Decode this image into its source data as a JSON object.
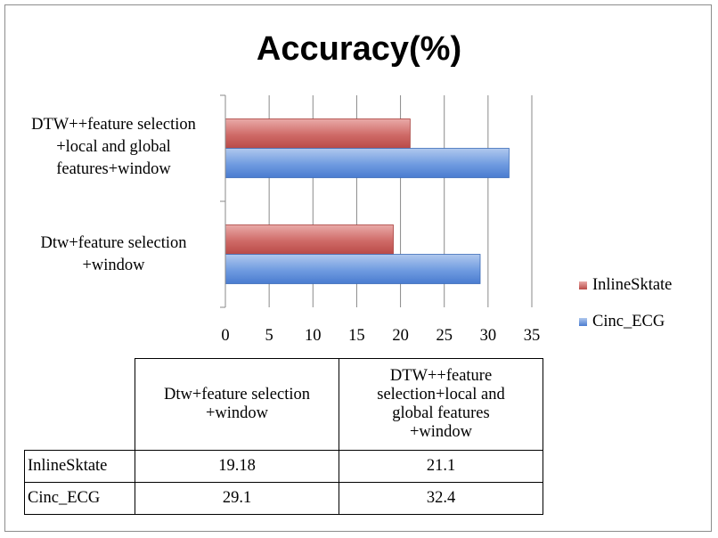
{
  "chart_data": {
    "type": "bar",
    "orientation": "horizontal",
    "title": "Accuracy(%)",
    "categories": [
      "Dtw+feature selection\n+window",
      "DTW++feature selection\n+local and global\nfeatures+window"
    ],
    "series": [
      {
        "name": "InlineSktate",
        "values": [
          19.18,
          21.1
        ],
        "color": "#c0504d"
      },
      {
        "name": "Cinc_ECG",
        "values": [
          29.1,
          32.4
        ],
        "color": "#4f81bd"
      }
    ],
    "xlim": [
      0,
      35
    ],
    "xticks": [
      0,
      5,
      10,
      15,
      20,
      25,
      30,
      35
    ],
    "grid": true,
    "legend_position": "right"
  },
  "table": {
    "headers": [
      "",
      "Dtw+feature selection\n+window",
      "DTW++feature\nselection+local and\nglobal features\n+window"
    ],
    "rows": [
      {
        "label": "InlineSktate",
        "values": [
          "19.18",
          "21.1"
        ]
      },
      {
        "label": "Cinc_ECG",
        "values": [
          "29.1",
          "32.4"
        ]
      }
    ]
  }
}
